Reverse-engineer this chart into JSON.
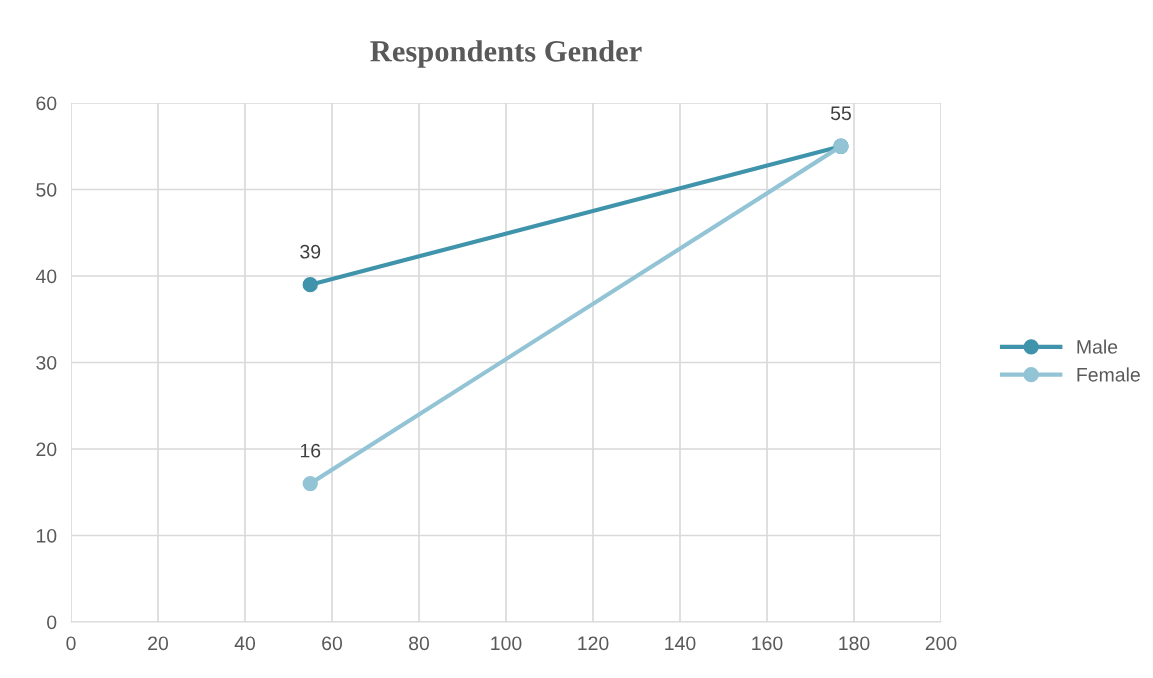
{
  "chart_data": {
    "type": "line",
    "title": "Respondents Gender",
    "x": [
      55,
      177
    ],
    "series": [
      {
        "name": "Male",
        "color": "#3f94ab",
        "values": [
          39,
          55
        ],
        "value_labels": [
          "39",
          "55"
        ]
      },
      {
        "name": "Female",
        "color": "#93c4d5",
        "values": [
          16,
          55
        ],
        "value_labels": [
          "16",
          null
        ]
      }
    ],
    "xlim": [
      0,
      200
    ],
    "xticks": [
      0,
      20,
      40,
      60,
      80,
      100,
      120,
      140,
      160,
      180,
      200
    ],
    "ylim": [
      0,
      60
    ],
    "yticks": [
      0,
      10,
      20,
      30,
      40,
      50,
      60
    ],
    "grid": true,
    "legend": "right",
    "marker": "circle",
    "line_style": "solid"
  }
}
